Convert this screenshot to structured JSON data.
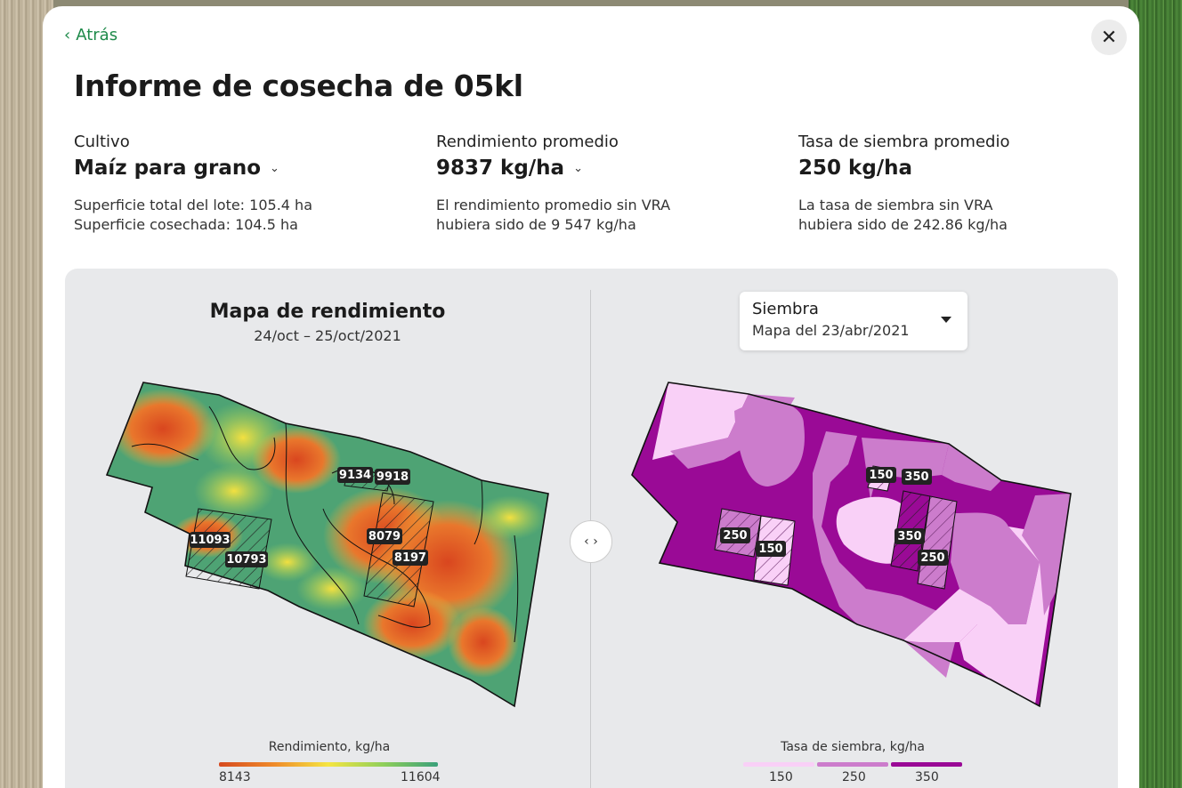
{
  "header": {
    "back_label": "Atrás",
    "title": "Informe de cosecha de 05kl"
  },
  "stats": {
    "crop": {
      "label": "Cultivo",
      "value": "Maíz para grano",
      "desc_line1": "Superficie total del lote: 105.4 ha",
      "desc_line2": "Superficie cosechada: 104.5 ha"
    },
    "yield": {
      "label": "Rendimiento promedio",
      "value": "9837 kg/ha",
      "desc_line1": "El rendimiento promedio sin VRA",
      "desc_line2": "hubiera sido de 9 547 kg/ha"
    },
    "seeding": {
      "label": "Tasa de siembra promedio",
      "value": "250 kg/ha",
      "desc_line1": "La tasa de siembra sin VRA",
      "desc_line2": "hubiera sido de 242.86 kg/ha"
    }
  },
  "yield_map": {
    "title": "Mapa de rendimiento",
    "date": "24/oct – 25/oct/2021",
    "badges": [
      "11093",
      "10793",
      "9134",
      "9918",
      "8079",
      "8197"
    ],
    "legend_title": "Rendimiento, kg/ha",
    "legend_min": "8143",
    "legend_max": "11604"
  },
  "seeding_map": {
    "dropdown_label": "Siembra",
    "dropdown_value": "Mapa del 23/abr/2021",
    "badges": [
      "250",
      "150",
      "150",
      "350",
      "350",
      "250"
    ],
    "legend_title": "Tasa de siembra, kg/ha",
    "legend_values": [
      "150",
      "250",
      "350"
    ],
    "colors": {
      "low": "#f9d0f7",
      "mid": "#cc7ccc",
      "high": "#9a0a96"
    }
  },
  "icons": {
    "back": "chevron-left-icon",
    "close": "close-icon",
    "toggle": "compare-arrows-icon",
    "dropdown": "caret-down-icon"
  }
}
